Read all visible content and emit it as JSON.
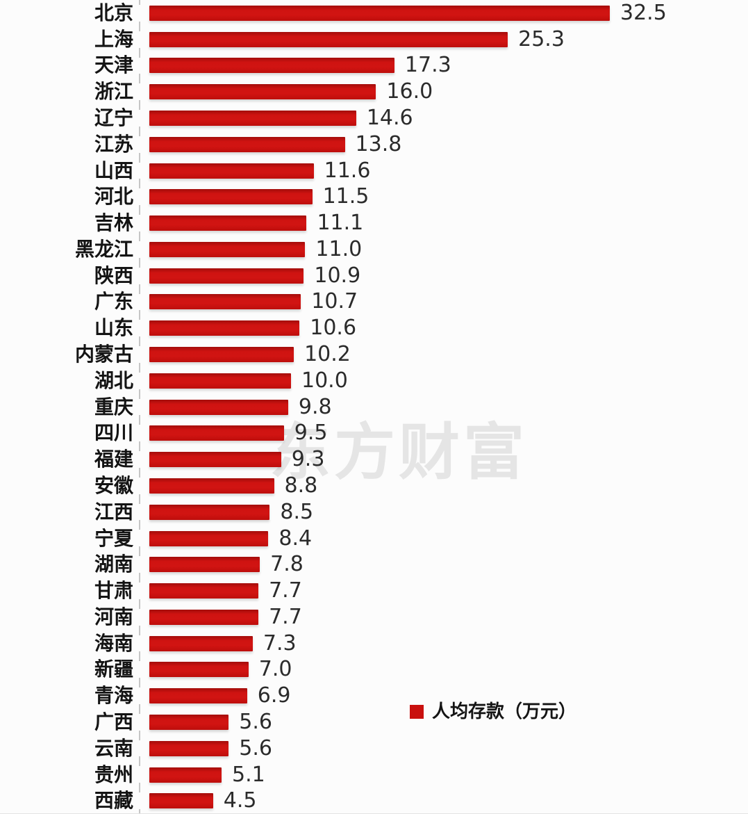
{
  "chart_data": {
    "type": "bar",
    "orientation": "horizontal",
    "title": "",
    "xlabel": "",
    "ylabel": "",
    "xlim": [
      0,
      32.5
    ],
    "grid": false,
    "legend_position": "bottom-right",
    "legend_label": "人均存款（万元）",
    "bar_color": "#c9100e",
    "categories": [
      "北京",
      "上海",
      "天津",
      "浙江",
      "辽宁",
      "江苏",
      "山西",
      "河北",
      "吉林",
      "黑龙江",
      "陕西",
      "广东",
      "山东",
      "内蒙古",
      "湖北",
      "重庆",
      "四川",
      "福建",
      "安徽",
      "江西",
      "宁夏",
      "湖南",
      "甘肃",
      "河南",
      "海南",
      "新疆",
      "青海",
      "广西",
      "云南",
      "贵州",
      "西藏"
    ],
    "values": [
      32.5,
      25.3,
      17.3,
      16.0,
      14.6,
      13.8,
      11.6,
      11.5,
      11.1,
      11.0,
      10.9,
      10.7,
      10.6,
      10.2,
      10.0,
      9.8,
      9.5,
      9.3,
      8.8,
      8.5,
      8.4,
      7.8,
      7.7,
      7.7,
      7.3,
      7.0,
      6.9,
      5.6,
      5.6,
      5.1,
      4.5
    ],
    "value_labels": [
      "32.5",
      "25.3",
      "17.3",
      "16.0",
      "14.6",
      "13.8",
      "11.6",
      "11.5",
      "11.1",
      "11.0",
      "10.9",
      "10.7",
      "10.6",
      "10.2",
      "10.0",
      "9.8",
      "9.5",
      "9.3",
      "8.8",
      "8.5",
      "8.4",
      "7.8",
      "7.7",
      "7.7",
      "7.3",
      "7.0",
      "6.9",
      "5.6",
      "5.6",
      "5.1",
      "4.5"
    ]
  },
  "legend": {
    "label": "人均存款（万元）"
  },
  "watermark": {
    "text": "东方财富"
  }
}
